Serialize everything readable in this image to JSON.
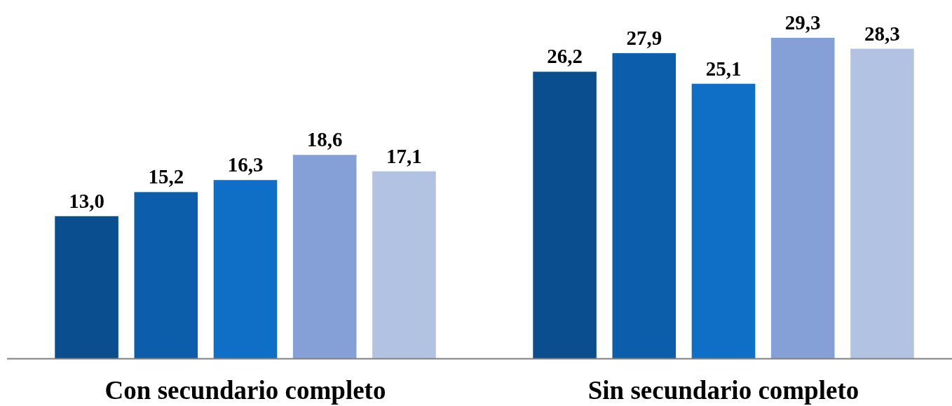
{
  "chart_data": {
    "type": "bar",
    "categories": [
      "Con secundario completo",
      "Sin secundario completo"
    ],
    "series": [
      {
        "color": "#0b4e8f",
        "values": [
          13.0,
          26.2
        ],
        "value_labels": [
          "13,0",
          "26,2"
        ]
      },
      {
        "color": "#0d5eaa",
        "values": [
          15.2,
          27.9
        ],
        "value_labels": [
          "15,2",
          "27,9"
        ]
      },
      {
        "color": "#0f6fc6",
        "values": [
          16.3,
          25.1
        ],
        "value_labels": [
          "16,3",
          "25,1"
        ]
      },
      {
        "color": "#84a0d6",
        "values": [
          18.6,
          29.3
        ],
        "value_labels": [
          "18,6",
          "29,3"
        ]
      },
      {
        "color": "#b2c2e2",
        "values": [
          17.1,
          28.3
        ],
        "value_labels": [
          "17,1",
          "28,3"
        ]
      }
    ]
  }
}
